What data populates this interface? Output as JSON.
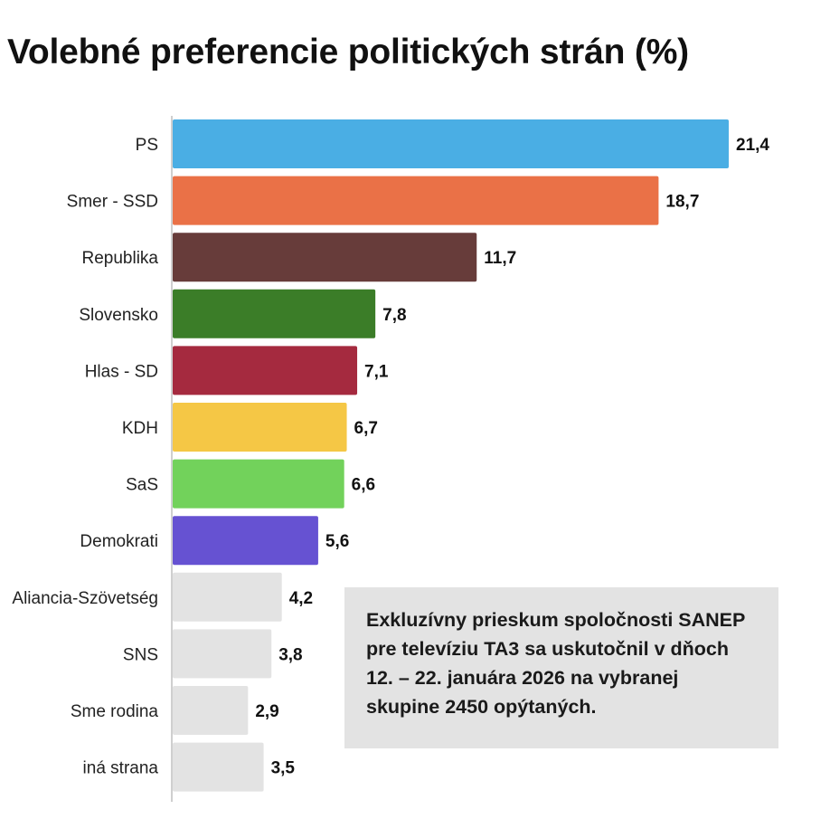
{
  "chart_data": {
    "type": "bar",
    "orientation": "horizontal",
    "title": "Volebné preferencie politických strán (%)",
    "categories": [
      "PS",
      "Smer - SSD",
      "Republika",
      "Slovensko",
      "Hlas - SD",
      "KDH",
      "SaS",
      "Demokrati",
      "Aliancia-Szövetség",
      "SNS",
      "Sme rodina",
      "iná strana"
    ],
    "values": [
      21.4,
      18.7,
      11.7,
      7.8,
      7.1,
      6.7,
      6.6,
      5.6,
      4.2,
      3.8,
      2.9,
      3.5
    ],
    "value_labels": [
      "21,4",
      "18,7",
      "11,7",
      "7,8",
      "7,1",
      "6,7",
      "6,6",
      "5,6",
      "4,2",
      "3,8",
      "2,9",
      "3,5"
    ],
    "colors": [
      "#4aaee4",
      "#ea7147",
      "#673c3a",
      "#3b7d28",
      "#a52a3f",
      "#f5c745",
      "#72d25b",
      "#6652d2",
      "#e3e3e3",
      "#e3e3e3",
      "#e3e3e3",
      "#e3e3e3"
    ],
    "xlim": [
      0,
      21.4
    ],
    "xlabel": "",
    "ylabel": "",
    "grid": false,
    "legend": "none"
  },
  "note": {
    "text": "Exkluzívny prieskum spoločnosti SANEP pre televíziu TA3 sa uskutočnil v dňoch 12. – 22. januára 2026 na vybranej skupine 2450 opýtaných."
  }
}
